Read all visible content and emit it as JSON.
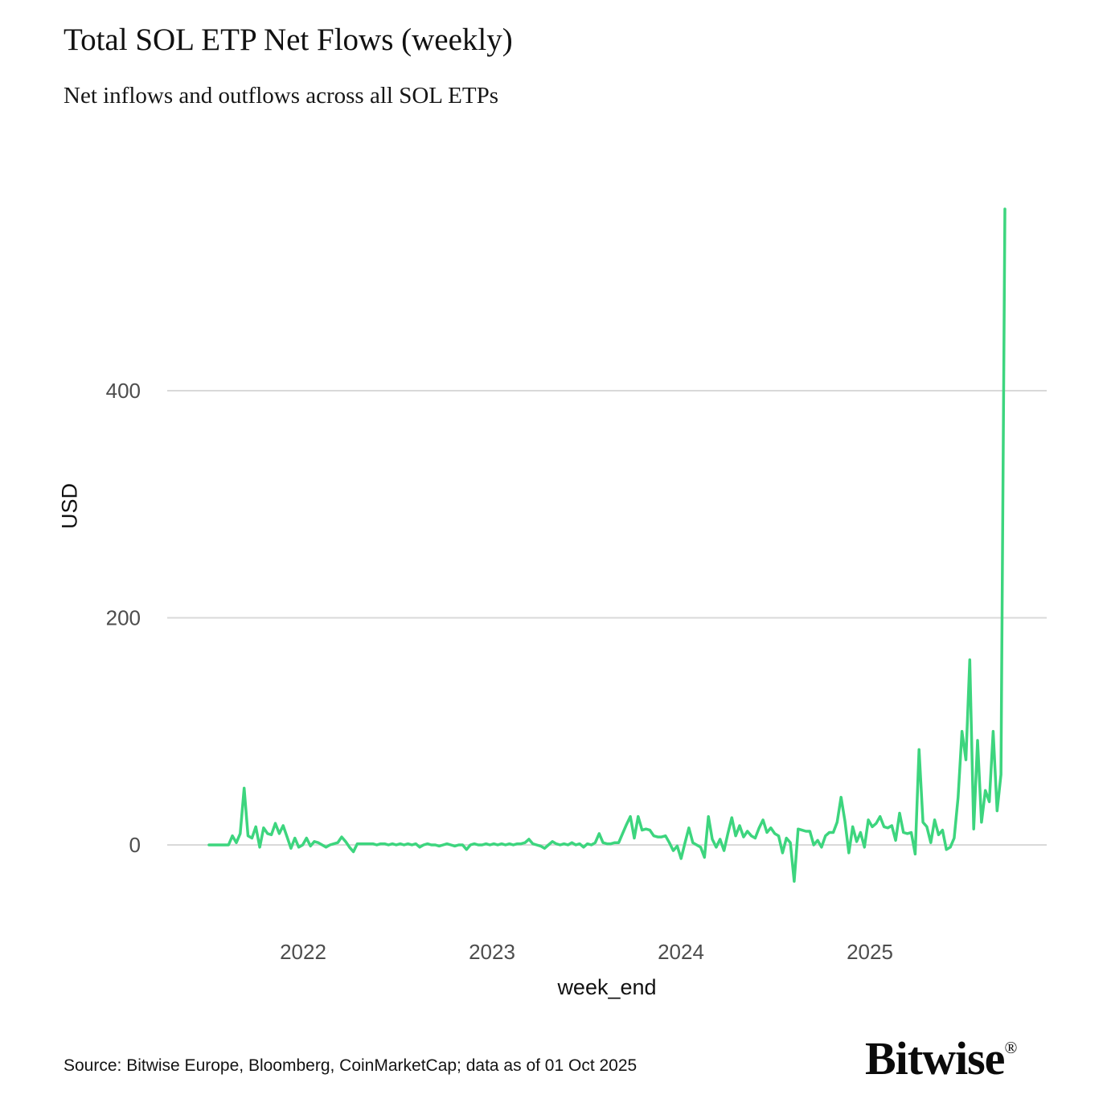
{
  "header": {
    "title": "Total SOL ETP Net Flows (weekly)",
    "subtitle": "Net inflows and outflows across all SOL ETPs"
  },
  "axes": {
    "y_title": "USD",
    "x_title": "week_end",
    "y_tick_labels": [
      "400",
      "200",
      "0"
    ],
    "x_tick_labels": [
      "2022",
      "2023",
      "2024",
      "2025"
    ]
  },
  "footer": {
    "source": "Source: Bitwise Europe, Bloomberg, CoinMarketCap; data as of 01 Oct 2025",
    "logo_text": "Bitwise",
    "logo_reg": "®"
  },
  "chart_data": {
    "type": "line",
    "title": "Total SOL ETP Net Flows (weekly)",
    "subtitle": "Net inflows and outflows across all SOL ETPs",
    "xlabel": "week_end",
    "ylabel": "USD",
    "x_axis": {
      "kind": "time-weekly",
      "start_approx": "2021-07",
      "end_approx": "2025-09-28",
      "tick_years": [
        2022,
        2023,
        2024,
        2025
      ]
    },
    "y_ticks": [
      0,
      200,
      400
    ],
    "ylim": [
      -60,
      595
    ],
    "grid": true,
    "legend_position": "none",
    "line_color": "#3dd57e",
    "grid_color": "#d9d9d9",
    "tick_label_color": "#4d4d4d",
    "background": "#ffffff",
    "values": [
      0,
      0,
      0,
      0,
      0,
      0,
      8,
      2,
      10,
      50,
      8,
      6,
      16,
      -2,
      15,
      10,
      9,
      19,
      10,
      17,
      7,
      -3,
      6,
      -2,
      0,
      6,
      -1,
      3,
      2,
      0,
      -2,
      0,
      1,
      2,
      7,
      3,
      -2,
      -6,
      1,
      1,
      1,
      1,
      1,
      0,
      1,
      1,
      0,
      1,
      0,
      1,
      0,
      1,
      0,
      1,
      -2,
      0,
      1,
      0,
      0,
      -1,
      0,
      1,
      0,
      -1,
      0,
      0,
      -4,
      0,
      1,
      0,
      0,
      1,
      0,
      1,
      0,
      1,
      0,
      1,
      0,
      1,
      1,
      2,
      5,
      1,
      0,
      -1,
      -3,
      0,
      3,
      1,
      0,
      1,
      0,
      2,
      0,
      1,
      -2,
      1,
      0,
      2,
      10,
      2,
      1,
      1,
      2,
      2,
      10,
      18,
      25,
      6,
      25,
      13,
      14,
      13,
      8,
      7,
      7,
      8,
      2,
      -5,
      -1,
      -12,
      2,
      15,
      2,
      0,
      -2,
      -11,
      25,
      5,
      -2,
      5,
      -5,
      10,
      24,
      8,
      17,
      7,
      12,
      8,
      6,
      15,
      22,
      11,
      15,
      10,
      8,
      -7,
      6,
      2,
      -32,
      14,
      13,
      12,
      12,
      0,
      4,
      -2,
      8,
      11,
      11,
      20,
      42,
      21,
      -7,
      16,
      3,
      11,
      -2,
      22,
      16,
      19,
      25,
      16,
      15,
      17,
      4,
      28,
      11,
      10,
      11,
      -8,
      84,
      20,
      16,
      2,
      22,
      9,
      13,
      -4,
      -2,
      6,
      42,
      100,
      75,
      163,
      14,
      92,
      20,
      48,
      38,
      100,
      30,
      62,
      560
    ]
  }
}
